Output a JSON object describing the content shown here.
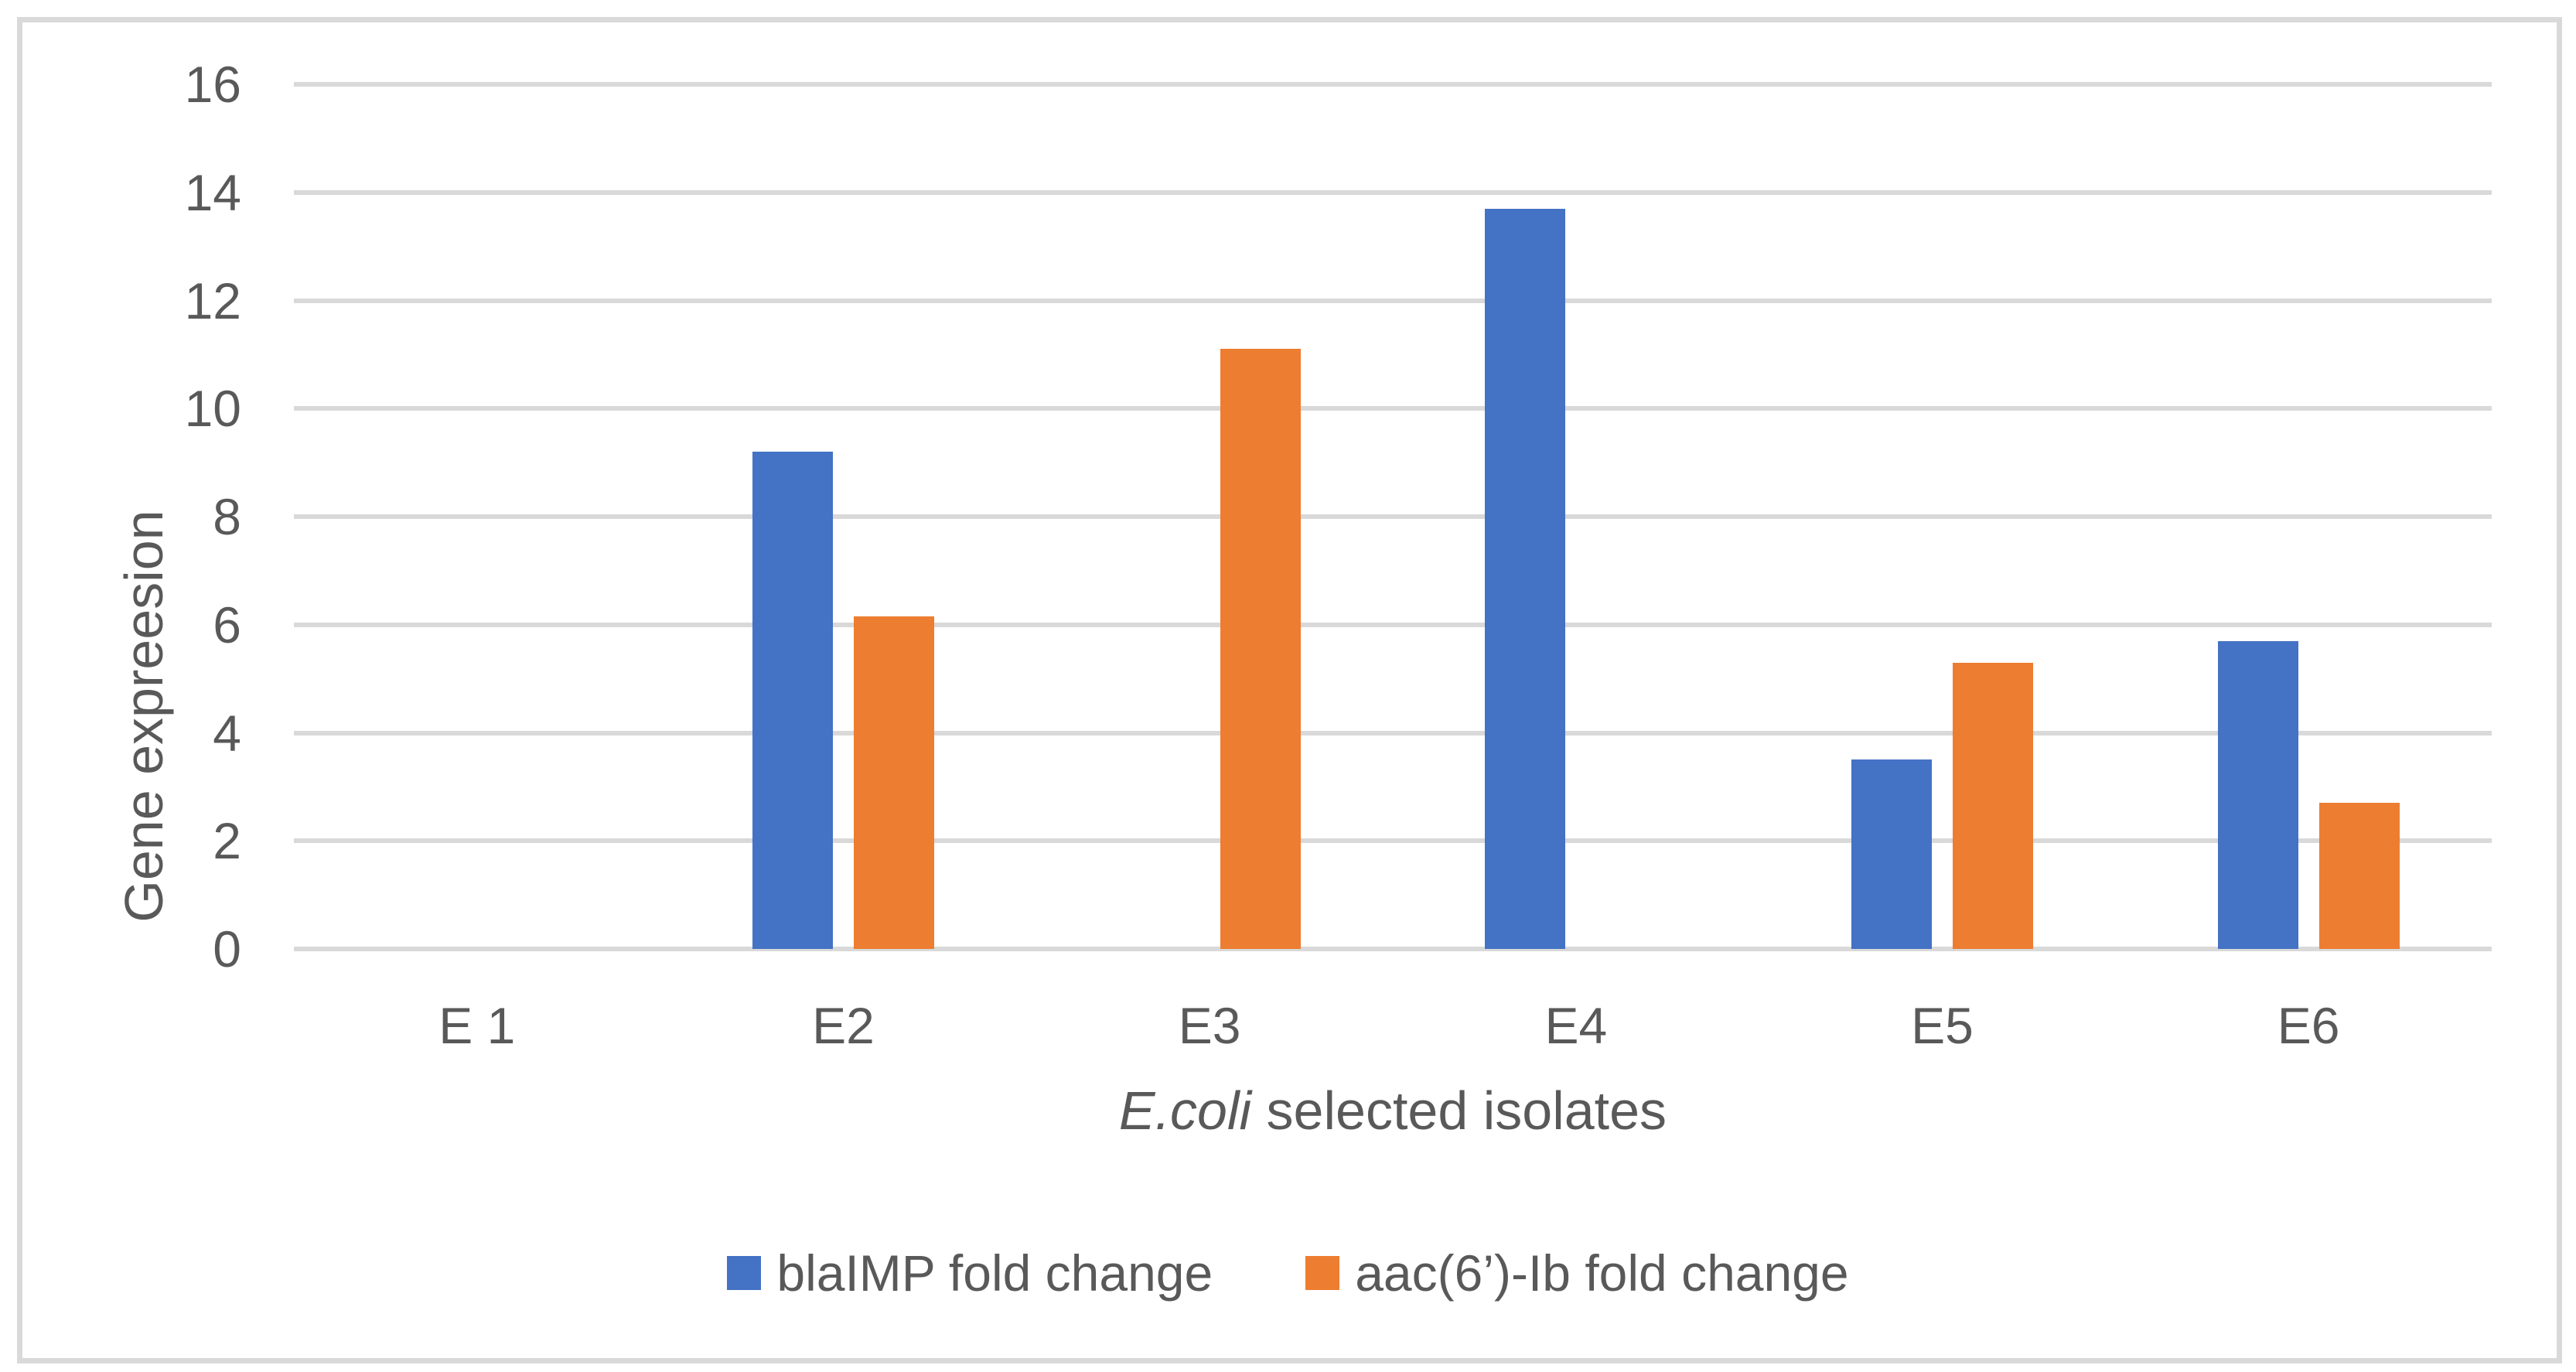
{
  "chart_data": {
    "type": "bar",
    "title": "",
    "categories": [
      "E 1",
      "E2",
      "E3",
      "E4",
      "E5",
      "E6"
    ],
    "series": [
      {
        "name": "blaIMP fold change",
        "color": "#4472C4",
        "values": [
          0,
          9.2,
          0,
          13.7,
          3.5,
          5.7
        ]
      },
      {
        "name": "aac(6’)-Ib fold change",
        "color": "#ED7D31",
        "values": [
          0,
          6.15,
          11.1,
          0,
          5.3,
          2.7
        ]
      }
    ],
    "ylabel": "Gene expreesion",
    "xlabel_italic": "E.coli",
    "xlabel_rest": " selected isolates",
    "yticks": [
      0,
      2,
      4,
      6,
      8,
      10,
      12,
      14,
      16
    ],
    "ylim": [
      0,
      16
    ],
    "grid": true,
    "gridline_color": "#D9D9D9",
    "text_color": "#595959",
    "legend_position": "bottom"
  }
}
